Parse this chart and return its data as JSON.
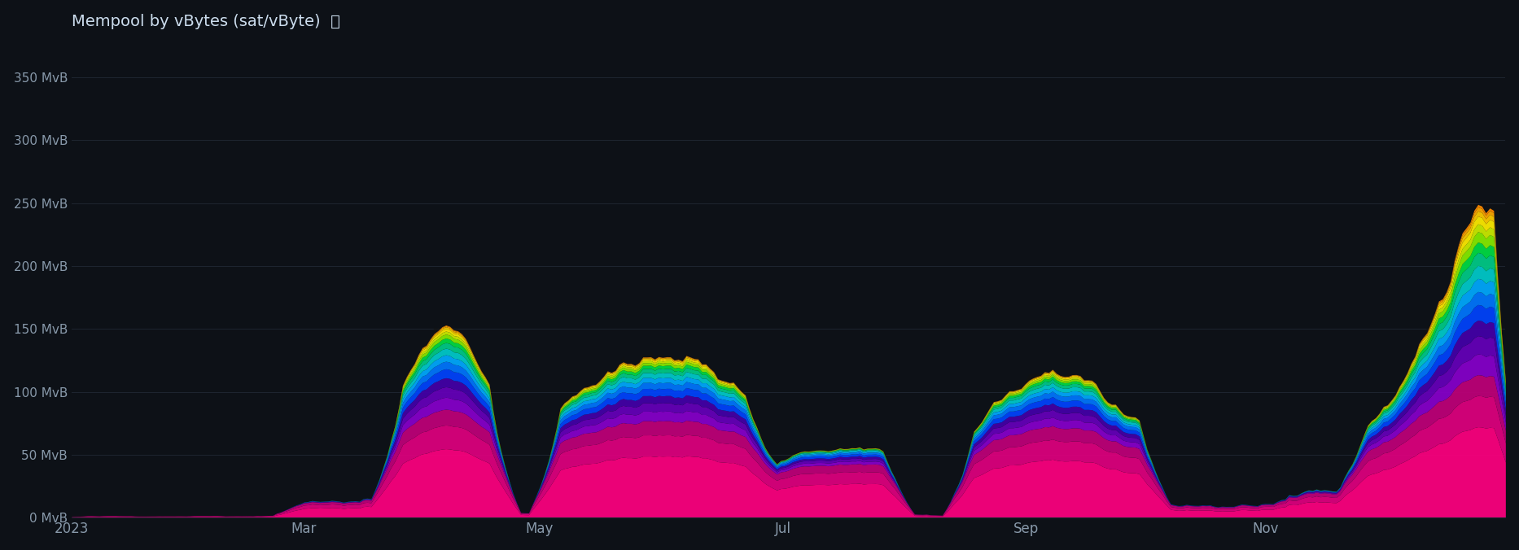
{
  "title": "Mempool by vBytes (sat/vByte)  ⤓",
  "background_color": "#0d1117",
  "plot_bg_color": "#0d1117",
  "grid_color": "#1e2530",
  "text_color": "#8899aa",
  "title_color": "#ccddee",
  "ylabel_ticks": [
    "0 MvB",
    "50 MvB",
    "100 MvB",
    "150 MvB",
    "200 MvB",
    "250 MvB",
    "300 MvB",
    "350 MvB"
  ],
  "ytick_vals": [
    0,
    50,
    100,
    150,
    200,
    250,
    300,
    350
  ],
  "ylim": [
    0,
    380
  ],
  "xlim_days": [
    0,
    365
  ],
  "x_tick_labels": [
    "2023",
    "Mar",
    "May",
    "Jul",
    "Sep",
    "Nov"
  ],
  "x_tick_positions": [
    0,
    59,
    119,
    181,
    243,
    304
  ],
  "fee_colors": [
    "#ff0080",
    "#e0007f",
    "#c0007a",
    "#8800cc",
    "#6600bb",
    "#4400aa",
    "#0044ff",
    "#0077ff",
    "#00aaff",
    "#00cccc",
    "#00cc88",
    "#00dd44",
    "#88ee00",
    "#ccee00",
    "#ffee00",
    "#ffcc00",
    "#ffaa00",
    "#ff8800"
  ],
  "n_points": 365
}
